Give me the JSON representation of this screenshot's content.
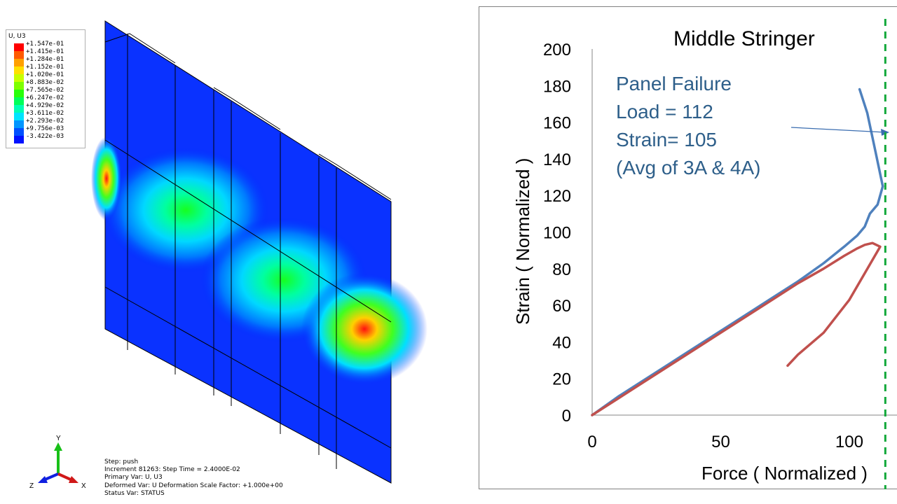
{
  "fem": {
    "legend_title": "U, U3",
    "legend_values": [
      "+1.547e-01",
      "+1.415e-01",
      "+1.284e-01",
      "+1.152e-01",
      "+1.020e-01",
      "+8.883e-02",
      "+7.565e-02",
      "+6.247e-02",
      "+4.929e-02",
      "+3.611e-02",
      "+2.293e-02",
      "+9.756e-03",
      "-3.422e-03"
    ],
    "legend_colors": [
      "#ff0000",
      "#ff5a00",
      "#ffa000",
      "#ffe000",
      "#c8ff00",
      "#7dff00",
      "#28ff0a",
      "#00ff59",
      "#00ffb4",
      "#00e4ff",
      "#0096ff",
      "#0050ff",
      "#0012ff"
    ],
    "status_lines": [
      "Step: push",
      "Increment    81263: Step Time =    2.4000E-02",
      "Primary Var: U, U3",
      "Deformed Var: U   Deformation Scale Factor: +1.000e+00",
      "Status Var: STATUS"
    ],
    "triad": {
      "y": "Y",
      "z": "Z",
      "x": "X"
    }
  },
  "chart_data": {
    "type": "line",
    "title": "Middle Stringer",
    "xlabel": "Force ( Normalized )",
    "ylabel": "Strain ( Normalized )",
    "xlim": [
      0,
      115
    ],
    "ylim": [
      0,
      200
    ],
    "xticks": [
      0,
      50,
      100
    ],
    "yticks": [
      0,
      20,
      40,
      60,
      80,
      100,
      120,
      140,
      160,
      180,
      200
    ],
    "grid": false,
    "series": [
      {
        "color": "#4f81bd",
        "points": [
          [
            0,
            0
          ],
          [
            10,
            10
          ],
          [
            20,
            19
          ],
          [
            30,
            28
          ],
          [
            40,
            37
          ],
          [
            50,
            46
          ],
          [
            60,
            55
          ],
          [
            70,
            64
          ],
          [
            80,
            73
          ],
          [
            90,
            83
          ],
          [
            98,
            92
          ],
          [
            103,
            98
          ],
          [
            106,
            103
          ],
          [
            108,
            110
          ],
          [
            111,
            115
          ],
          [
            113,
            125
          ],
          [
            110,
            145
          ],
          [
            107,
            165
          ],
          [
            104,
            178
          ]
        ]
      },
      {
        "color": "#c0504d",
        "points": [
          [
            0,
            0
          ],
          [
            10,
            9
          ],
          [
            20,
            18
          ],
          [
            30,
            27
          ],
          [
            40,
            36
          ],
          [
            50,
            45
          ],
          [
            60,
            54
          ],
          [
            70,
            63
          ],
          [
            80,
            72
          ],
          [
            90,
            80
          ],
          [
            98,
            87
          ],
          [
            103,
            91
          ],
          [
            106,
            93
          ],
          [
            109,
            94
          ],
          [
            112,
            92
          ],
          [
            100,
            63
          ],
          [
            90,
            45
          ],
          [
            80,
            33
          ],
          [
            76,
            27
          ]
        ]
      }
    ],
    "annotation": [
      "Panel Failure",
      "Load = 112",
      "Strain= 105",
      "(Avg of 3A & 4A)"
    ],
    "failure_line_x": 114
  }
}
